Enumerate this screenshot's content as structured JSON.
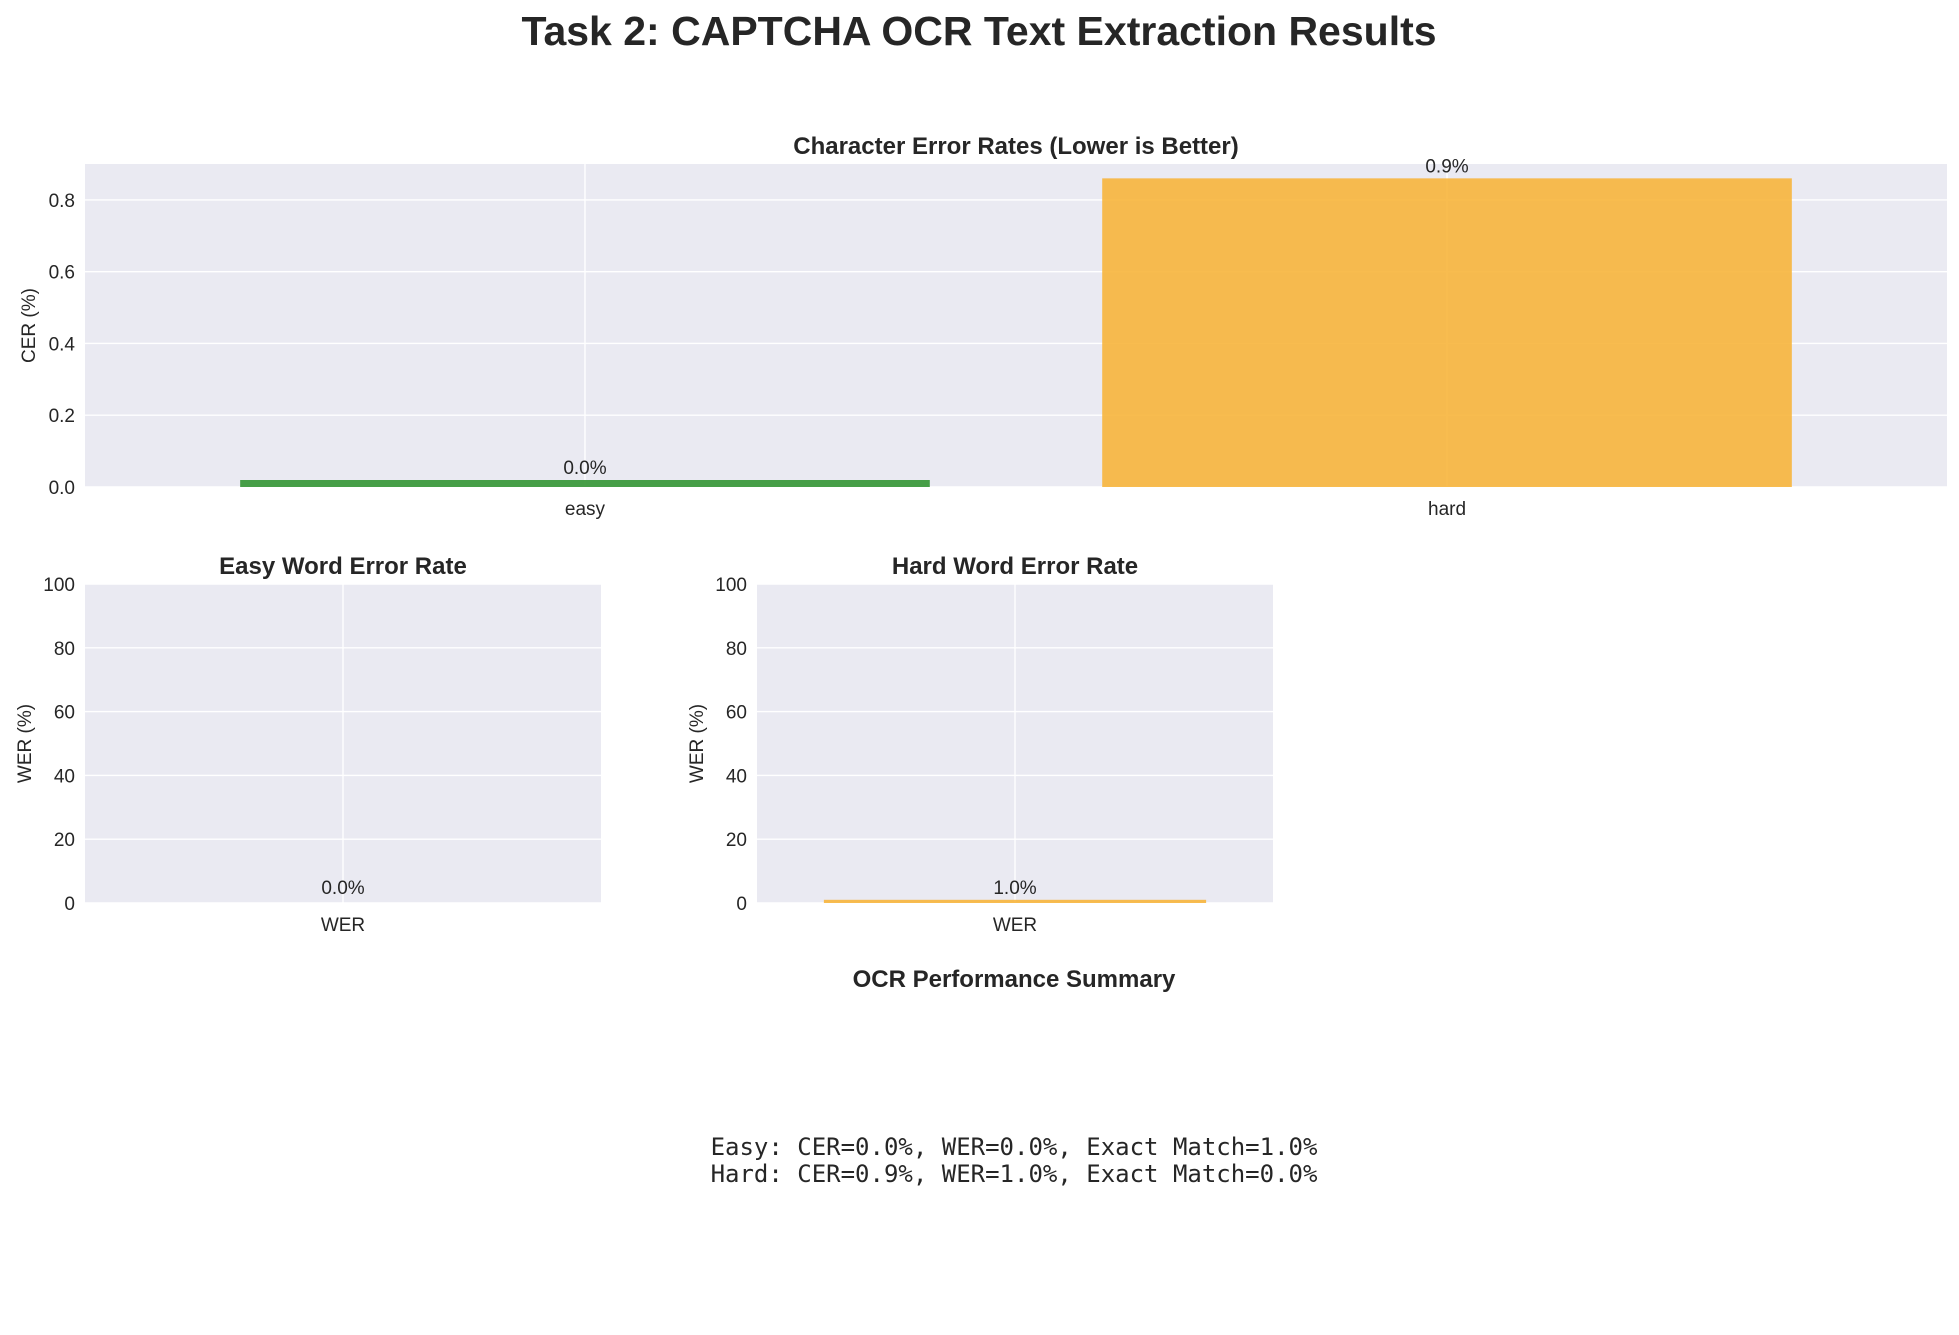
{
  "suptitle": "Task 2: CAPTCHA OCR Text Extraction Results",
  "colors": {
    "easy": "#3d9a3d",
    "hard": "#f7b53c",
    "plot_bg": "#eaeaf2",
    "grid": "#ffffff"
  },
  "chart_data": [
    {
      "type": "bar",
      "title": "Character Error Rates (Lower is Better)",
      "xlabel": "",
      "ylabel": "CER (%)",
      "categories": [
        "easy",
        "hard"
      ],
      "values": [
        0.0,
        0.86
      ],
      "labels": [
        "0.0%",
        "0.9%"
      ],
      "ylim": [
        0,
        0.9
      ],
      "yticks": [
        0.0,
        0.2,
        0.4,
        0.6,
        0.8
      ],
      "ytick_labels": [
        "0.0",
        "0.2",
        "0.4",
        "0.6",
        "0.8"
      ],
      "grid": true,
      "colors": [
        "#3d9a3d",
        "#f7b53c"
      ]
    },
    {
      "type": "bar",
      "title": "Easy Word Error Rate",
      "xlabel": "",
      "ylabel": "WER (%)",
      "categories": [
        "WER"
      ],
      "values": [
        0.0
      ],
      "labels": [
        "0.0%"
      ],
      "ylim": [
        0,
        100
      ],
      "yticks": [
        0,
        20,
        40,
        60,
        80,
        100
      ],
      "ytick_labels": [
        "0",
        "20",
        "40",
        "60",
        "80",
        "100"
      ],
      "grid": true,
      "colors": [
        "#3d9a3d"
      ]
    },
    {
      "type": "bar",
      "title": "Hard Word Error Rate",
      "xlabel": "",
      "ylabel": "WER (%)",
      "categories": [
        "WER"
      ],
      "values": [
        1.0
      ],
      "labels": [
        "1.0%"
      ],
      "ylim": [
        0,
        100
      ],
      "yticks": [
        0,
        20,
        40,
        60,
        80,
        100
      ],
      "ytick_labels": [
        "0",
        "20",
        "40",
        "60",
        "80",
        "100"
      ],
      "grid": true,
      "colors": [
        "#f7b53c"
      ]
    }
  ],
  "summary": {
    "title": "OCR Performance Summary",
    "lines": [
      "Easy: CER=0.0%, WER=0.0%, Exact Match=1.0%",
      "Hard: CER=0.9%, WER=1.0%, Exact Match=0.0%"
    ]
  }
}
